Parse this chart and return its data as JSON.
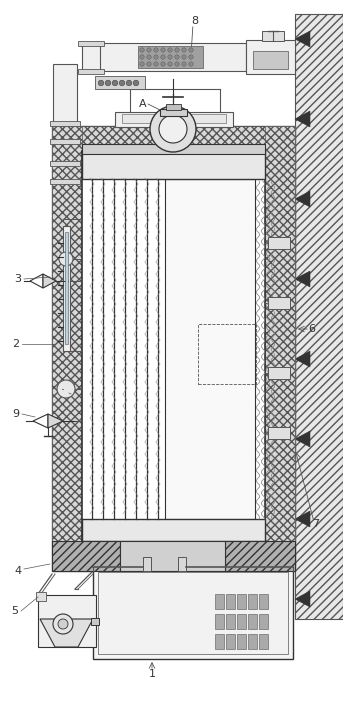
{
  "bg_color": "#ffffff",
  "line_color": "#555555",
  "dark_color": "#333333",
  "gray_color": "#888888",
  "light_gray": "#cccccc",
  "hatch_color": "#777777",
  "label_color": "#333333",
  "figsize": [
    3.43,
    7.19
  ],
  "dpi": 100
}
